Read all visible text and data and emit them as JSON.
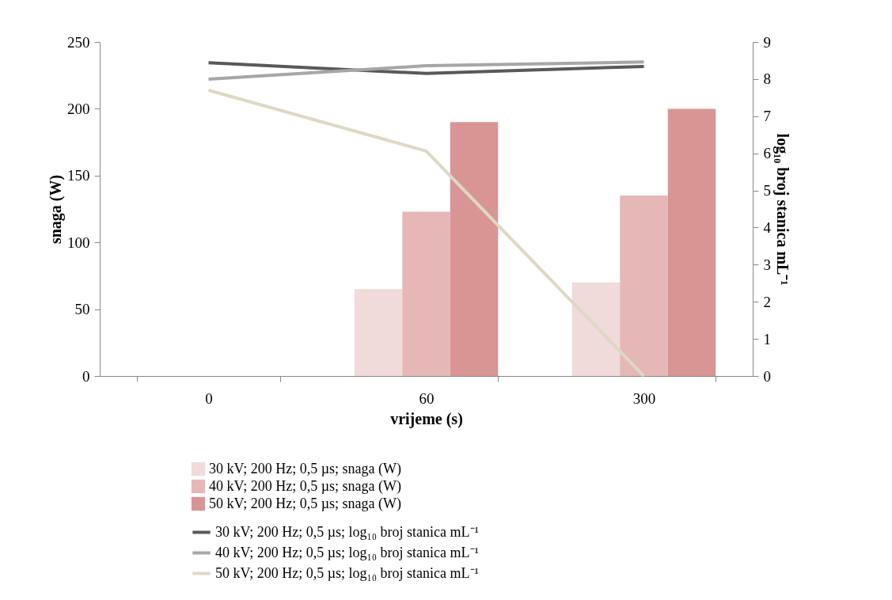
{
  "chart_data": {
    "type": "bar",
    "xlabel": "vrijeme (s)",
    "ylabel": "snaga (W)",
    "y2label": "log₁₀ broj stanica mL⁻¹",
    "categories": [
      "0",
      "60",
      "300"
    ],
    "series": [
      {
        "name": "30 kV; 200 Hz; 0,5 µs; snaga (W)",
        "color": "#f0dada",
        "values": [
          null,
          65,
          70
        ]
      },
      {
        "name": "40 kV; 200 Hz; 0,5 µs; snaga (W)",
        "color": "#e5b7b7",
        "values": [
          null,
          123,
          135
        ]
      },
      {
        "name": "50 kV; 200 Hz; 0,5 µs; snaga (W)",
        "color": "#d99594",
        "values": [
          null,
          190,
          200
        ]
      },
      {
        "name": "30 kV; 200 Hz; 0,5 µs;  log₁₀ broj stanica mL⁻¹",
        "type": "line",
        "axis": "y2",
        "color": "#595959",
        "values": [
          8.44,
          8.15,
          8.34
        ]
      },
      {
        "name": "40 kV; 200 Hz; 0,5 µs;  log₁₀ broj stanica mL⁻¹",
        "type": "line",
        "axis": "y2",
        "color": "#a6a6a6",
        "values": [
          8.0,
          8.36,
          8.46
        ]
      },
      {
        "name": "50 kV; 200 Hz; 0,5 µs;  log₁₀ broj stanica mL⁻¹",
        "type": "line",
        "axis": "y2",
        "color": "#ddd9c3",
        "values": [
          7.7,
          6.06,
          0
        ]
      }
    ],
    "ylim": [
      0,
      250
    ],
    "yticks": [
      0,
      50,
      100,
      150,
      200,
      250
    ],
    "y2lim": [
      0,
      9
    ],
    "y2ticks": [
      0,
      1,
      2,
      3,
      4,
      5,
      6,
      7,
      8,
      9
    ],
    "legend": "bottom"
  }
}
